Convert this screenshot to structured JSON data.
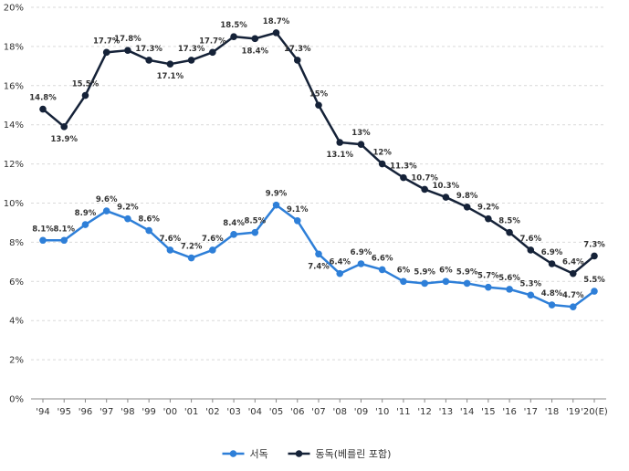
{
  "chart_data": {
    "type": "line",
    "categories": [
      "'94",
      "'95",
      "'96",
      "'97",
      "'98",
      "'99",
      "'00",
      "'01",
      "'02",
      "'03",
      "'04",
      "'05",
      "'06",
      "'07",
      "'08",
      "'09",
      "'10",
      "'11",
      "'12",
      "'13",
      "'14",
      "'15",
      "'16",
      "'17",
      "'18",
      "'19",
      "'20(E)"
    ],
    "ylim": [
      0,
      20
    ],
    "yticks": [
      "0%",
      "2%",
      "4%",
      "6%",
      "8%",
      "10%",
      "12%",
      "14%",
      "16%",
      "18%",
      "20%"
    ],
    "grid": true,
    "legend_position": "bottom",
    "series": [
      {
        "name": "서독",
        "color": "#2e7fd8",
        "values": [
          8.1,
          8.1,
          8.9,
          9.6,
          9.2,
          8.6,
          7.6,
          7.2,
          7.6,
          8.4,
          8.5,
          9.9,
          9.1,
          7.4,
          6.4,
          6.9,
          6.6,
          6.0,
          5.9,
          6.0,
          5.9,
          5.7,
          5.6,
          5.3,
          4.8,
          4.7,
          5.5
        ],
        "labels": [
          "8.1%",
          "8.1%",
          "8.9%",
          "9.6%",
          "9.2%",
          "8.6%",
          "7.6%",
          "7.2%",
          "7.6%",
          "8.4%",
          "8.5%",
          "9.9%",
          "9.1%",
          "7.4%",
          "6.4%",
          "6.9%",
          "6.6%",
          "6%",
          "5.9%",
          "6%",
          "5.9%",
          "5.7%",
          "5.6%",
          "5.3%",
          "4.8%",
          "4.7%",
          "5.5%"
        ]
      },
      {
        "name": "동독(베를린 포함)",
        "color": "#152238",
        "values": [
          14.8,
          13.9,
          15.5,
          17.7,
          17.8,
          17.3,
          17.1,
          17.3,
          17.7,
          18.5,
          18.4,
          18.7,
          17.3,
          15.0,
          13.1,
          13.0,
          12.0,
          11.3,
          10.7,
          10.3,
          9.8,
          9.2,
          8.5,
          7.6,
          6.9,
          6.4,
          7.3
        ],
        "labels": [
          "14.8%",
          "13.9%",
          "15.5%",
          "17.7%",
          "17.8%",
          "17.3%",
          "17.1%",
          "17.3%",
          "17.7%",
          "18.5%",
          "18.4%",
          "18.7%",
          "17.3%",
          "15%",
          "13.1%",
          "13%",
          "12%",
          "11.3%",
          "10.7%",
          "10.3%",
          "9.8%",
          "9.2%",
          "8.5%",
          "7.6%",
          "6.9%",
          "6.4%",
          "7.3%"
        ]
      }
    ]
  }
}
